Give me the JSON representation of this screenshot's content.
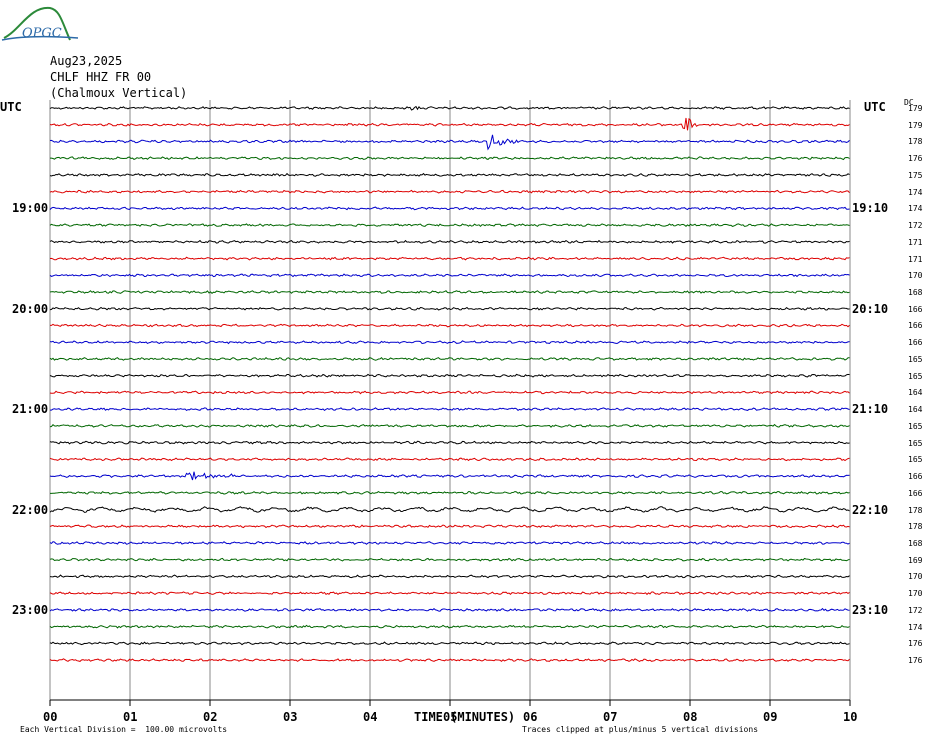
{
  "header": {
    "logo_text": "OPGC",
    "date": "Aug23,2025",
    "channel": "CHLF HHZ FR 00",
    "station": "(Chalmoux Vertical)"
  },
  "axes": {
    "left_title": "UTC",
    "right_title": "UTC",
    "dc_title": "DC",
    "left_hours": [
      "19:00",
      "20:00",
      "21:00",
      "22:00",
      "23:00"
    ],
    "right_hours": [
      "19:10",
      "20:10",
      "21:10",
      "22:10",
      "23:10"
    ],
    "x_ticks": [
      "00",
      "01",
      "02",
      "03",
      "04",
      "05",
      "06",
      "07",
      "08",
      "09",
      "10"
    ],
    "x_label": "TIME (MINUTES)"
  },
  "dc_values": [
    "179",
    "179",
    "178",
    "176",
    "175",
    "174",
    "174",
    "172",
    "171",
    "171",
    "170",
    "168",
    "166",
    "166",
    "166",
    "165",
    "165",
    "164",
    "164",
    "165",
    "165",
    "165",
    "166",
    "166",
    "178",
    "178",
    "168",
    "169",
    "170",
    "170",
    "172",
    "174",
    "176",
    "176"
  ],
  "trace_colors": [
    "#000000",
    "#dd0000",
    "#0000cc",
    "#006600"
  ],
  "events": [
    {
      "trace": 0,
      "minute": 4.55,
      "amp": 3,
      "dur": 0.12
    },
    {
      "trace": 1,
      "minute": 7.95,
      "amp": 11,
      "dur": 0.15
    },
    {
      "trace": 2,
      "minute": 5.5,
      "amp": 9,
      "dur": 0.45
    },
    {
      "trace": 22,
      "minute": 1.7,
      "amp": 5,
      "dur": 0.9
    }
  ],
  "footer": {
    "scale": "Each Vertical Division =  100.00 microvolts",
    "clip": "Traces clipped at plus/minus 5 vertical divisions"
  }
}
